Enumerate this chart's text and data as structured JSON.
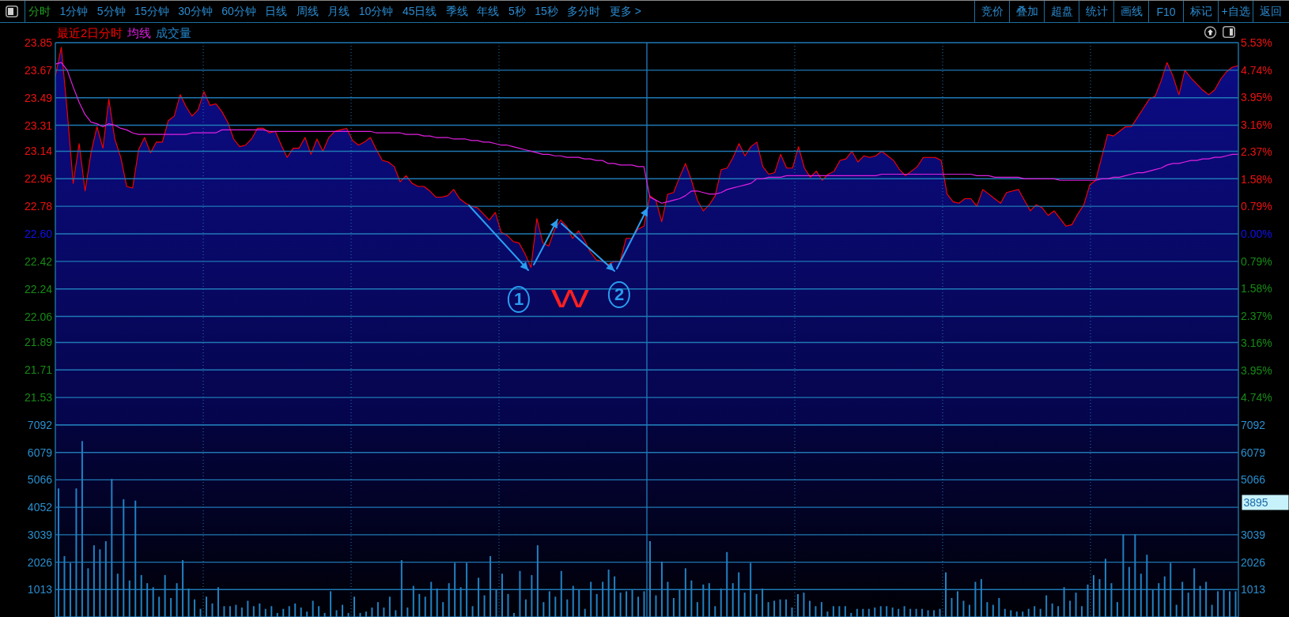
{
  "chart_data": [
    {
      "type": "other",
      "annotations": [
        "分时",
        "1分钟",
        "5分钟",
        "15分钟",
        "30分钟",
        "60分钟",
        "日线",
        "周线",
        "月线",
        "10分钟",
        "45日线",
        "季线",
        "年线",
        "5秒",
        "15秒",
        "多分时",
        "更多 >"
      ]
    },
    {
      "type": "other",
      "annotations": [
        "竞价",
        "叠加",
        "超盘",
        "统计",
        "画线",
        "F10",
        "标记",
        "+自选",
        "返回"
      ]
    },
    {
      "type": "area",
      "legend": "top left",
      "grid": true,
      "categories": [
        null,
        null,
        null,
        null,
        null,
        null,
        null,
        null,
        null,
        null,
        null,
        null,
        null,
        null,
        null,
        null,
        null,
        null,
        null,
        null,
        null,
        null,
        null,
        null,
        null,
        null,
        null,
        null,
        null,
        null,
        null,
        null,
        null,
        null,
        null,
        null,
        null,
        null,
        null,
        null,
        null,
        null,
        null,
        null,
        null,
        null,
        null,
        null,
        null,
        null,
        null,
        null,
        null,
        null,
        null,
        null,
        null,
        null,
        null,
        null,
        null,
        null,
        null,
        null,
        null,
        null,
        null,
        null,
        null,
        null,
        null,
        null,
        null,
        null,
        null,
        null,
        null,
        null,
        null,
        null,
        null,
        null,
        null,
        null,
        null,
        null,
        null,
        null,
        null,
        null,
        null,
        null,
        null,
        null,
        null,
        null,
        null,
        null,
        null,
        null,
        null,
        null,
        null,
        null,
        null,
        null,
        null,
        null,
        null,
        null,
        null,
        null,
        null,
        null,
        null,
        null,
        null,
        null,
        null,
        null,
        null,
        null,
        null,
        null,
        null,
        null,
        null,
        null,
        null,
        null,
        null,
        null,
        null,
        null,
        null,
        null,
        null,
        null,
        null,
        null,
        null,
        null,
        null,
        null,
        null,
        null,
        null,
        null,
        null,
        null,
        null,
        null,
        null,
        null,
        null,
        null,
        null,
        null,
        null,
        null,
        null,
        null,
        null,
        null,
        null,
        null,
        null,
        null,
        null,
        null,
        null,
        null,
        null,
        null,
        null,
        null,
        null,
        null,
        null,
        null,
        null,
        null,
        null,
        null,
        null,
        null,
        null,
        null,
        null,
        null,
        null,
        null,
        null,
        null,
        null,
        null,
        null,
        null,
        null,
        null
      ],
      "ylim": [
        21.35,
        23.85
      ],
      "yticks": [
        21.53,
        21.71,
        21.89,
        22.06,
        22.24,
        22.42,
        {
          "value": 22.6,
          "label": "22.60"
        },
        22.78,
        22.96,
        23.14,
        23.31,
        23.49,
        23.67,
        23.85
      ],
      "y2lim": [
        -5.53,
        5.53
      ],
      "y2ticks": [
        {
          "value": -4.74,
          "label": "4.74%"
        },
        {
          "value": -3.95,
          "label": "3.95%"
        },
        {
          "value": -3.16,
          "label": "3.16%"
        },
        {
          "value": -2.37,
          "label": "2.37%"
        },
        {
          "value": -1.58,
          "label": "1.58%"
        },
        {
          "value": -0.79,
          "label": "0.79%"
        },
        {
          "value": 0,
          "label": "0.00%"
        },
        {
          "value": 0.79,
          "label": "0.79%"
        },
        {
          "value": 1.58,
          "label": "1.58%"
        },
        {
          "value": 2.37,
          "label": "2.37%"
        },
        {
          "value": 3.16,
          "label": "3.16%"
        },
        {
          "value": 3.95,
          "label": "3.95%"
        },
        {
          "value": 4.74,
          "label": "4.74%"
        },
        {
          "value": 5.53,
          "label": "5.53%"
        }
      ],
      "series": [
        {
          "name": "最近2日分时",
          "type": "area",
          "color": "#ff0000",
          "values": [
            23.63,
            23.82,
            23.4,
            22.93,
            23.19,
            22.88,
            23.13,
            23.3,
            23.16,
            23.48,
            23.22,
            23.1,
            22.91,
            22.9,
            23.15,
            23.23,
            23.13,
            23.2,
            23.2,
            23.34,
            23.37,
            23.51,
            23.43,
            23.37,
            23.41,
            23.53,
            23.44,
            23.45,
            23.4,
            23.33,
            23.22,
            23.17,
            23.18,
            23.22,
            23.29,
            23.29,
            23.26,
            23.27,
            23.18,
            23.1,
            23.16,
            23.16,
            23.23,
            23.12,
            23.22,
            23.14,
            23.23,
            23.27,
            23.28,
            23.29,
            23.21,
            23.18,
            23.2,
            23.23,
            23.15,
            23.08,
            23.07,
            23.04,
            22.94,
            22.98,
            22.93,
            22.91,
            22.91,
            22.88,
            22.84,
            22.84,
            22.85,
            22.89,
            22.83,
            22.8,
            22.78,
            22.77,
            22.73,
            22.69,
            22.74,
            22.61,
            22.59,
            22.55,
            22.54,
            22.47,
            22.38,
            22.7,
            22.54,
            22.52,
            22.63,
            22.69,
            22.65,
            22.57,
            22.62,
            22.56,
            22.48,
            22.43,
            22.42,
            22.4,
            22.42,
            22.42,
            22.57,
            22.57,
            22.63,
            22.65,
            22.85,
            22.82,
            22.68,
            22.86,
            22.87,
            22.97,
            23.06,
            22.95,
            22.82,
            22.75,
            22.79,
            22.85,
            23.02,
            23.03,
            23.1,
            23.19,
            23.11,
            23.17,
            23.2,
            23.04,
            22.99,
            23.0,
            23.12,
            23.03,
            23.03,
            23.17,
            23.03,
            22.97,
            23.01,
            22.95,
            22.99,
            23.01,
            23.08,
            23.09,
            23.14,
            23.07,
            23.11,
            23.1,
            23.11,
            23.14,
            23.11,
            23.08,
            23.02,
            22.98,
            23.01,
            23.04,
            23.1,
            23.1,
            23.1,
            23.08,
            22.86,
            22.81,
            22.8,
            22.83,
            22.83,
            22.78,
            22.89,
            22.86,
            22.83,
            22.8,
            22.87,
            22.88,
            22.89,
            22.82,
            22.75,
            22.79,
            22.77,
            22.72,
            22.75,
            22.7,
            22.65,
            22.66,
            22.73,
            22.79,
            22.92,
            22.95,
            23.1,
            23.25,
            23.24,
            23.27,
            23.3,
            23.3,
            23.36,
            23.42,
            23.48,
            23.5,
            23.6,
            23.72,
            23.63,
            23.51,
            23.67,
            23.62,
            23.58,
            23.54,
            23.51,
            23.54,
            23.61,
            23.66,
            23.69,
            23.7
          ]
        },
        {
          "name": "均线",
          "type": "line",
          "color": "#e020e0",
          "values": [
            23.71,
            23.72,
            23.67,
            23.56,
            23.46,
            23.38,
            23.33,
            23.32,
            23.3,
            23.32,
            23.31,
            23.29,
            23.28,
            23.26,
            23.25,
            23.25,
            23.25,
            23.25,
            23.25,
            23.25,
            23.25,
            23.25,
            23.25,
            23.26,
            23.26,
            23.26,
            23.26,
            23.26,
            23.28,
            23.28,
            23.28,
            23.28,
            23.28,
            23.28,
            23.28,
            23.28,
            23.27,
            23.27,
            23.27,
            23.27,
            23.27,
            23.27,
            23.27,
            23.27,
            23.27,
            23.27,
            23.27,
            23.27,
            23.27,
            23.27,
            23.27,
            23.27,
            23.27,
            23.27,
            23.26,
            23.26,
            23.26,
            23.26,
            23.26,
            23.25,
            23.25,
            23.25,
            23.24,
            23.24,
            23.23,
            23.23,
            23.23,
            23.22,
            23.22,
            23.22,
            23.21,
            23.21,
            23.2,
            23.2,
            23.19,
            23.18,
            23.18,
            23.17,
            23.16,
            23.15,
            23.14,
            23.13,
            23.12,
            23.12,
            23.11,
            23.11,
            23.1,
            23.1,
            23.1,
            23.09,
            23.09,
            23.08,
            23.08,
            23.06,
            23.06,
            23.05,
            23.05,
            23.05,
            23.04,
            23.04,
            22.84,
            22.82,
            22.8,
            22.81,
            22.82,
            22.83,
            22.85,
            22.88,
            22.88,
            22.87,
            22.86,
            22.86,
            22.87,
            22.89,
            22.9,
            22.91,
            22.92,
            22.93,
            22.96,
            22.96,
            22.97,
            22.97,
            22.97,
            22.98,
            22.98,
            22.98,
            22.98,
            22.98,
            22.98,
            22.98,
            22.98,
            22.98,
            22.98,
            22.98,
            22.98,
            22.98,
            22.98,
            22.98,
            22.98,
            22.99,
            22.99,
            22.99,
            22.99,
            22.99,
            22.99,
            22.99,
            22.99,
            22.99,
            22.99,
            22.99,
            22.99,
            22.99,
            22.99,
            22.99,
            22.99,
            22.98,
            22.98,
            22.98,
            22.97,
            22.97,
            22.97,
            22.97,
            22.97,
            22.96,
            22.96,
            22.96,
            22.96,
            22.96,
            22.96,
            22.95,
            22.95,
            22.95,
            22.95,
            22.95,
            22.95,
            22.95,
            22.96,
            22.96,
            22.97,
            22.97,
            22.98,
            22.99,
            23.0,
            23.0,
            23.01,
            23.02,
            23.03,
            23.05,
            23.06,
            23.06,
            23.07,
            23.08,
            23.08,
            23.09,
            23.09,
            23.1,
            23.1,
            23.11,
            23.12,
            23.12
          ]
        }
      ],
      "annotations": [
        "1",
        "W",
        "2"
      ]
    },
    {
      "type": "bar",
      "legend": "top left",
      "grid": true,
      "categories": [
        null,
        null,
        null,
        null,
        null,
        null,
        null,
        null,
        null,
        null,
        null,
        null,
        null,
        null,
        null,
        null,
        null,
        null,
        null,
        null,
        null,
        null,
        null,
        null,
        null,
        null,
        null,
        null,
        null,
        null,
        null,
        null,
        null,
        null,
        null,
        null,
        null,
        null,
        null,
        null,
        null,
        null,
        null,
        null,
        null,
        null,
        null,
        null,
        null,
        null,
        null,
        null,
        null,
        null,
        null,
        null,
        null,
        null,
        null,
        null,
        null,
        null,
        null,
        null,
        null,
        null,
        null,
        null,
        null,
        null,
        null,
        null,
        null,
        null,
        null,
        null,
        null,
        null,
        null,
        null,
        null,
        null,
        null,
        null,
        null,
        null,
        null,
        null,
        null,
        null,
        null,
        null,
        null,
        null,
        null,
        null,
        null,
        null,
        null,
        null,
        null,
        null,
        null,
        null,
        null,
        null,
        null,
        null,
        null,
        null,
        null,
        null,
        null,
        null,
        null,
        null,
        null,
        null,
        null,
        null,
        null,
        null,
        null,
        null,
        null,
        null,
        null,
        null,
        null,
        null,
        null,
        null,
        null,
        null,
        null,
        null,
        null,
        null,
        null,
        null,
        null,
        null,
        null,
        null,
        null,
        null,
        null,
        null,
        null,
        null,
        null,
        null,
        null,
        null,
        null,
        null,
        null,
        null,
        null,
        null,
        null,
        null,
        null,
        null,
        null,
        null,
        null,
        null,
        null,
        null,
        null,
        null,
        null,
        null,
        null,
        null,
        null,
        null,
        null,
        null,
        null,
        null,
        null,
        null,
        null,
        null,
        null,
        null,
        null,
        null,
        null,
        null,
        null,
        null,
        null,
        null,
        null,
        null,
        null,
        null
      ],
      "ylim": [
        0,
        7092
      ],
      "yticks": [
        1013,
        2026,
        3039,
        4052,
        5066,
        6079,
        7092
      ],
      "y2lim": [
        0,
        7092
      ],
      "y2ticks": [
        1013,
        2026,
        3039,
        5066,
        6079,
        7092
      ],
      "series": [
        {
          "name": "成交量",
          "color": "#2181c2",
          "values": [
            4750,
            2250,
            2000,
            4750,
            6500,
            1800,
            2650,
            2500,
            2800,
            5100,
            1600,
            4350,
            1350,
            4300,
            1550,
            1250,
            1100,
            750,
            1550,
            700,
            1250,
            2100,
            1050,
            650,
            300,
            750,
            500,
            1100,
            400,
            400,
            450,
            350,
            600,
            400,
            500,
            300,
            400,
            150,
            300,
            400,
            500,
            350,
            200,
            600,
            400,
            150,
            950,
            250,
            450,
            150,
            750,
            150,
            200,
            350,
            550,
            350,
            750,
            250,
            2100,
            350,
            1150,
            850,
            750,
            1300,
            1050,
            550,
            1250,
            2000,
            1100,
            2000,
            400,
            1450,
            800,
            2250,
            1000,
            1600,
            850,
            150,
            1700,
            650,
            1550,
            2650,
            550,
            950,
            750,
            1700,
            650,
            1150,
            1000,
            300,
            1300,
            850,
            1300,
            1750,
            1500,
            900,
            950,
            1000,
            750,
            950,
            2800,
            800,
            2050,
            1300,
            700,
            1000,
            1800,
            1350,
            550,
            1200,
            1250,
            400,
            1050,
            2400,
            1250,
            1650,
            900,
            2000,
            850,
            1050,
            550,
            600,
            650,
            650,
            350,
            850,
            900,
            600,
            400,
            550,
            200,
            400,
            400,
            400,
            150,
            300,
            300,
            300,
            350,
            400,
            400,
            350,
            300,
            400,
            300,
            300,
            300,
            250,
            250,
            300,
            1650,
            700,
            950,
            600,
            450,
            1300,
            1400,
            550,
            450,
            700,
            300,
            250,
            200,
            200,
            300,
            400,
            300,
            800,
            500,
            400,
            1100,
            600,
            900,
            400,
            1200,
            1550,
            1400,
            2150,
            1250,
            550,
            3050,
            1850,
            3050,
            1600,
            2300,
            1000,
            1250,
            1500,
            2000,
            450,
            1300,
            900,
            1800,
            1150,
            1300,
            450,
            950,
            1000,
            950,
            950
          ]
        }
      ],
      "annotations": [
        "3895"
      ]
    }
  ]
}
